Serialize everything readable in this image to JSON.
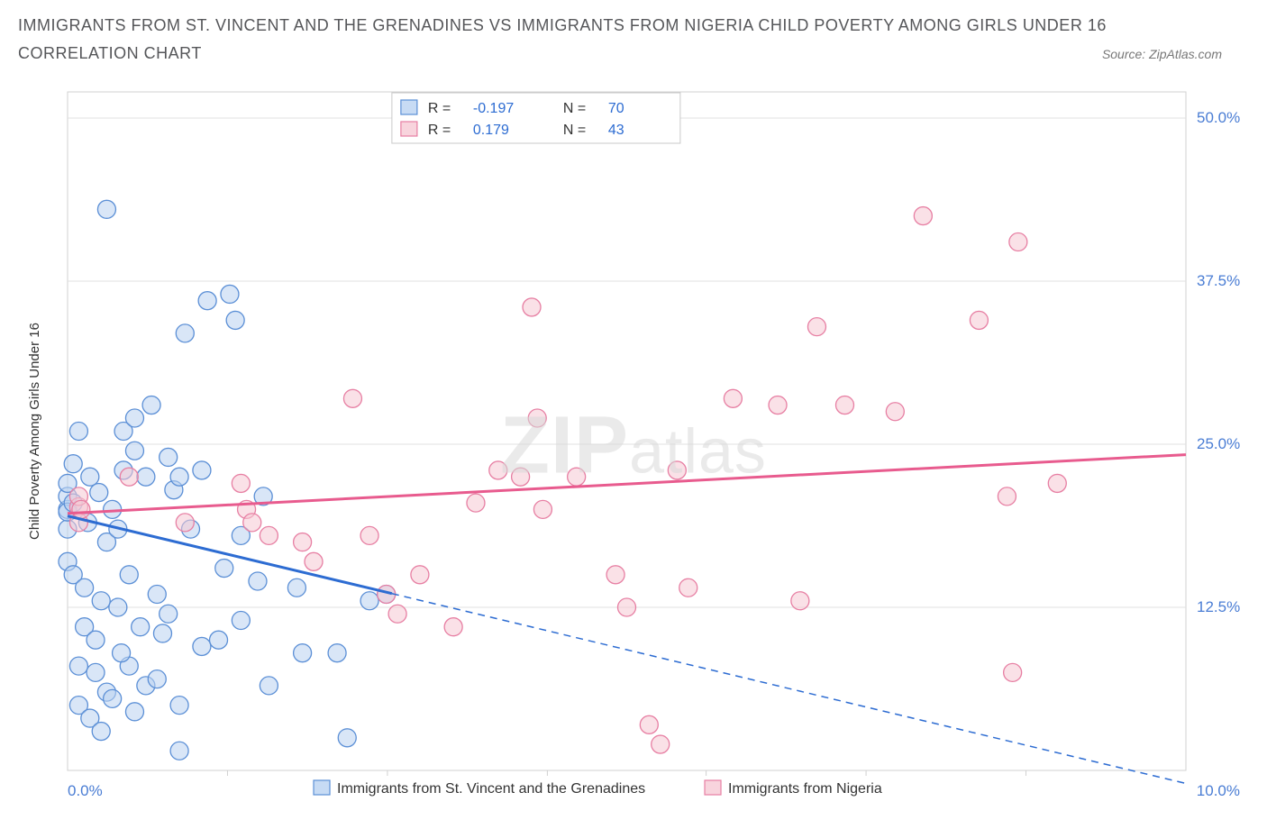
{
  "title_main": "IMMIGRANTS FROM ST. VINCENT AND THE GRENADINES VS IMMIGRANTS FROM NIGERIA CHILD POVERTY AMONG GIRLS UNDER 16",
  "title_sub": "CORRELATION CHART",
  "source_prefix": "Source: ",
  "source_name": "ZipAtlas.com",
  "watermark_zip": "ZIP",
  "watermark_atlas": "atlas",
  "chart": {
    "type": "scatter",
    "background_color": "#ffffff",
    "grid_color": "#e0e0e0",
    "axis_color": "#d0d0d0",
    "y_axis_label": "Child Poverty Among Girls Under 16",
    "y_axis_label_color": "#333333",
    "y_axis_label_fontsize": 15,
    "tick_label_color": "#4a7dd4",
    "tick_fontsize": 17,
    "x_domain": [
      0,
      10
    ],
    "y_domain": [
      0,
      52
    ],
    "x_ticks": [
      {
        "v": 0,
        "label": "0.0%"
      },
      {
        "v": 10,
        "label": "10.0%"
      }
    ],
    "x_minor_ticks": [
      1.43,
      2.86,
      4.29,
      5.71,
      7.14,
      8.57
    ],
    "y_ticks": [
      {
        "v": 12.5,
        "label": "12.5%"
      },
      {
        "v": 25.0,
        "label": "25.0%"
      },
      {
        "v": 37.5,
        "label": "37.5%"
      },
      {
        "v": 50.0,
        "label": "50.0%"
      }
    ],
    "marker_radius": 10,
    "marker_stroke_width": 1.3,
    "series": [
      {
        "name": "Immigrants from St. Vincent and the Grenadines",
        "fill": "#b9d2f1",
        "fill_opacity": 0.55,
        "stroke": "#5b8fd6",
        "trend": {
          "color": "#2d6cd2",
          "width": 3,
          "solid_to_x": 2.9,
          "dash_from_x": 2.9,
          "y_at_x0": 19.5,
          "y_at_x10": -1.0
        },
        "stats": {
          "R": "-0.197",
          "N": "70"
        },
        "points": [
          [
            0.0,
            20.0
          ],
          [
            0.0,
            21.0
          ],
          [
            0.0,
            18.5
          ],
          [
            0.0,
            19.8
          ],
          [
            0.0,
            16.0
          ],
          [
            0.0,
            22.0
          ],
          [
            0.05,
            23.5
          ],
          [
            0.05,
            20.5
          ],
          [
            0.05,
            15.0
          ],
          [
            0.1,
            5.0
          ],
          [
            0.1,
            8.0
          ],
          [
            0.1,
            26.0
          ],
          [
            0.15,
            11.0
          ],
          [
            0.15,
            14.0
          ],
          [
            0.2,
            4.0
          ],
          [
            0.2,
            22.5
          ],
          [
            0.25,
            7.5
          ],
          [
            0.25,
            10.0
          ],
          [
            0.3,
            3.0
          ],
          [
            0.3,
            13.0
          ],
          [
            0.35,
            17.5
          ],
          [
            0.35,
            6.0
          ],
          [
            0.35,
            43.0
          ],
          [
            0.4,
            5.5
          ],
          [
            0.4,
            20.0
          ],
          [
            0.45,
            12.5
          ],
          [
            0.45,
            18.5
          ],
          [
            0.5,
            23.0
          ],
          [
            0.5,
            26.0
          ],
          [
            0.55,
            15.0
          ],
          [
            0.55,
            8.0
          ],
          [
            0.6,
            4.5
          ],
          [
            0.6,
            24.5
          ],
          [
            0.6,
            27.0
          ],
          [
            0.65,
            11.0
          ],
          [
            0.7,
            22.5
          ],
          [
            0.7,
            6.5
          ],
          [
            0.75,
            28.0
          ],
          [
            0.8,
            13.5
          ],
          [
            0.8,
            7.0
          ],
          [
            0.85,
            10.5
          ],
          [
            0.9,
            12.0
          ],
          [
            0.9,
            24.0
          ],
          [
            0.95,
            21.5
          ],
          [
            1.0,
            22.5
          ],
          [
            1.0,
            5.0
          ],
          [
            1.0,
            1.5
          ],
          [
            1.05,
            33.5
          ],
          [
            1.1,
            18.5
          ],
          [
            1.2,
            9.5
          ],
          [
            1.2,
            23.0
          ],
          [
            1.25,
            36.0
          ],
          [
            1.35,
            10.0
          ],
          [
            1.4,
            15.5
          ],
          [
            1.45,
            36.5
          ],
          [
            1.5,
            34.5
          ],
          [
            1.55,
            18.0
          ],
          [
            1.55,
            11.5
          ],
          [
            1.7,
            14.5
          ],
          [
            1.75,
            21.0
          ],
          [
            1.8,
            6.5
          ],
          [
            2.05,
            14.0
          ],
          [
            2.1,
            9.0
          ],
          [
            2.5,
            2.5
          ],
          [
            2.7,
            13.0
          ],
          [
            2.85,
            13.5
          ],
          [
            2.41,
            9.0
          ],
          [
            0.18,
            19.0
          ],
          [
            0.28,
            21.3
          ],
          [
            0.48,
            9.0
          ]
        ]
      },
      {
        "name": "Immigrants from Nigeria",
        "fill": "#f6c9d4",
        "fill_opacity": 0.55,
        "stroke": "#e77fa3",
        "trend": {
          "color": "#e85b8e",
          "width": 3,
          "solid_to_x": 10,
          "dash_from_x": 10,
          "y_at_x0": 19.7,
          "y_at_x10": 24.2
        },
        "stats": {
          "R": "0.179",
          "N": "43"
        },
        "points": [
          [
            0.1,
            20.2
          ],
          [
            0.1,
            21.0
          ],
          [
            0.1,
            19.0
          ],
          [
            0.12,
            20.0
          ],
          [
            0.55,
            22.5
          ],
          [
            1.05,
            19.0
          ],
          [
            1.55,
            22.0
          ],
          [
            1.6,
            20.0
          ],
          [
            1.65,
            19.0
          ],
          [
            1.8,
            18.0
          ],
          [
            2.1,
            17.5
          ],
          [
            2.2,
            16.0
          ],
          [
            2.55,
            28.5
          ],
          [
            2.7,
            18.0
          ],
          [
            2.85,
            13.5
          ],
          [
            2.95,
            12.0
          ],
          [
            3.15,
            15.0
          ],
          [
            3.45,
            11.0
          ],
          [
            3.65,
            20.5
          ],
          [
            3.85,
            23.0
          ],
          [
            4.05,
            22.5
          ],
          [
            4.15,
            35.5
          ],
          [
            4.2,
            27.0
          ],
          [
            4.25,
            20.0
          ],
          [
            4.55,
            22.5
          ],
          [
            4.9,
            15.0
          ],
          [
            5.0,
            12.5
          ],
          [
            5.2,
            3.5
          ],
          [
            5.3,
            2.0
          ],
          [
            5.45,
            23.0
          ],
          [
            5.55,
            14.0
          ],
          [
            6.35,
            28.0
          ],
          [
            6.55,
            13.0
          ],
          [
            6.7,
            34.0
          ],
          [
            7.4,
            27.5
          ],
          [
            7.65,
            42.5
          ],
          [
            8.15,
            34.5
          ],
          [
            8.45,
            7.5
          ],
          [
            8.5,
            40.5
          ],
          [
            8.85,
            22.0
          ],
          [
            8.4,
            21.0
          ],
          [
            5.95,
            28.5
          ],
          [
            6.95,
            28.0
          ]
        ]
      }
    ],
    "legend_top": {
      "box_stroke": "#c9c9c9",
      "label_R": "R =",
      "label_N": "N =",
      "value_color": "#2d6cd2",
      "text_color": "#333333",
      "fontsize": 16
    },
    "legend_bottom": {
      "text_color": "#333333",
      "fontsize": 16
    }
  }
}
